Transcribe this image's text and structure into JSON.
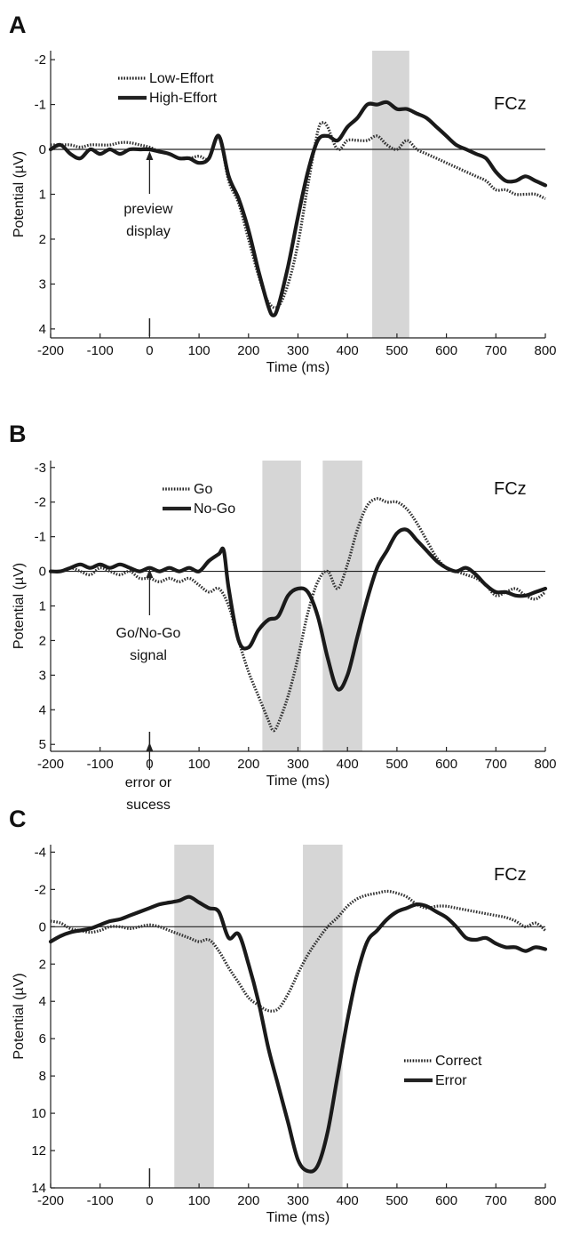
{
  "figure": {
    "panels": [
      {
        "letter": "A",
        "channel": "FCz",
        "annotation": {
          "lines": [
            "preview",
            "display"
          ]
        },
        "legend": [
          "Low-Effort",
          "High-Effort"
        ]
      },
      {
        "letter": "B",
        "channel": "FCz",
        "annotation": {
          "lines": [
            "Go/No-Go",
            "signal"
          ]
        },
        "legend": [
          "Go",
          "No-Go"
        ]
      },
      {
        "letter": "C",
        "channel": "FCz",
        "annotation": {
          "lines": [
            "error or",
            "sucess"
          ]
        },
        "legend": [
          "Correct",
          "Error"
        ]
      }
    ]
  },
  "chart_data": [
    {
      "type": "line",
      "panel": "A",
      "channel": "FCz",
      "xlabel": "Time (ms)",
      "ylabel": "Potential (µV)",
      "xlim": [
        -200,
        800
      ],
      "ylim": [
        4.2,
        -2.2
      ],
      "y_inverted": true,
      "xticks": [
        -200,
        -100,
        0,
        100,
        200,
        300,
        400,
        500,
        600,
        700,
        800
      ],
      "yticks": [
        -2,
        -1,
        0,
        1,
        2,
        3,
        4
      ],
      "ytick_labels": [
        "-2",
        "-1",
        "0",
        "1",
        "2",
        "3",
        "4"
      ],
      "shaded_windows": [
        [
          450,
          525
        ]
      ],
      "legend_position": "top-left",
      "grid": false,
      "series": [
        {
          "name": "Low-Effort",
          "style": "dotted",
          "x": [
            -200,
            -180,
            -160,
            -140,
            -120,
            -100,
            -80,
            -60,
            -40,
            -20,
            0,
            20,
            40,
            60,
            80,
            100,
            120,
            140,
            160,
            180,
            200,
            220,
            240,
            260,
            280,
            300,
            320,
            340,
            350,
            360,
            380,
            400,
            420,
            440,
            460,
            480,
            500,
            520,
            540,
            560,
            580,
            600,
            620,
            640,
            660,
            680,
            700,
            720,
            740,
            760,
            780,
            800
          ],
          "y": [
            -0.1,
            -0.1,
            -0.1,
            -0.05,
            -0.1,
            -0.1,
            -0.1,
            -0.15,
            -0.15,
            -0.1,
            -0.05,
            0.05,
            0.1,
            0.2,
            0.2,
            0.15,
            0.2,
            -0.3,
            0.7,
            1.2,
            2.0,
            2.8,
            3.4,
            3.5,
            3.0,
            2.1,
            0.8,
            -0.4,
            -0.6,
            -0.5,
            0.0,
            -0.2,
            -0.2,
            -0.2,
            -0.3,
            -0.1,
            0.0,
            -0.2,
            0.0,
            0.1,
            0.2,
            0.3,
            0.4,
            0.5,
            0.6,
            0.7,
            0.9,
            0.9,
            1.0,
            1.0,
            1.0,
            1.1
          ]
        },
        {
          "name": "High-Effort",
          "style": "solid",
          "x": [
            -200,
            -180,
            -160,
            -140,
            -120,
            -100,
            -80,
            -60,
            -40,
            -20,
            0,
            20,
            40,
            60,
            80,
            100,
            120,
            140,
            160,
            180,
            200,
            220,
            240,
            250,
            260,
            280,
            300,
            320,
            340,
            360,
            380,
            400,
            420,
            440,
            460,
            480,
            500,
            520,
            540,
            560,
            580,
            600,
            620,
            640,
            660,
            680,
            700,
            720,
            740,
            760,
            780,
            800
          ],
          "y": [
            0.0,
            -0.1,
            0.1,
            0.2,
            0.0,
            0.1,
            0.0,
            0.1,
            0.0,
            0.0,
            0.0,
            0.05,
            0.1,
            0.2,
            0.2,
            0.3,
            0.2,
            -0.3,
            0.6,
            1.1,
            1.8,
            2.7,
            3.5,
            3.7,
            3.5,
            2.6,
            1.5,
            0.5,
            -0.2,
            -0.3,
            -0.2,
            -0.5,
            -0.7,
            -1.0,
            -1.0,
            -1.05,
            -0.9,
            -0.9,
            -0.8,
            -0.7,
            -0.5,
            -0.3,
            -0.1,
            0.0,
            0.1,
            0.2,
            0.5,
            0.7,
            0.7,
            0.6,
            0.7,
            0.8
          ]
        }
      ]
    },
    {
      "type": "line",
      "panel": "B",
      "channel": "FCz",
      "xlabel": "Time (ms)",
      "ylabel": "Potential (µV)",
      "xlim": [
        -200,
        800
      ],
      "ylim": [
        5.2,
        -3.2
      ],
      "y_inverted": true,
      "xticks": [
        -200,
        -100,
        0,
        100,
        200,
        300,
        400,
        500,
        600,
        700,
        800
      ],
      "yticks": [
        -3,
        -2,
        -1,
        0,
        1,
        2,
        3,
        4,
        5
      ],
      "ytick_labels": [
        "-3",
        "-2",
        "-1",
        "0",
        "1",
        "2",
        "3",
        "4",
        "5"
      ],
      "shaded_windows": [
        [
          228,
          306
        ],
        [
          350,
          430
        ]
      ],
      "legend_position": "top-left",
      "grid": false,
      "series": [
        {
          "name": "Go",
          "style": "dotted",
          "x": [
            -200,
            -180,
            -160,
            -140,
            -120,
            -100,
            -80,
            -60,
            -40,
            -20,
            0,
            20,
            40,
            60,
            80,
            100,
            120,
            140,
            160,
            180,
            200,
            220,
            240,
            250,
            260,
            280,
            300,
            320,
            340,
            360,
            380,
            400,
            420,
            440,
            460,
            480,
            500,
            520,
            540,
            560,
            580,
            600,
            620,
            640,
            660,
            680,
            700,
            720,
            740,
            760,
            780,
            800
          ],
          "y": [
            0.0,
            0.0,
            -0.1,
            0.0,
            0.1,
            -0.1,
            0.0,
            0.1,
            0.0,
            0.2,
            0.2,
            0.3,
            0.2,
            0.3,
            0.2,
            0.4,
            0.6,
            0.5,
            1.0,
            2.0,
            2.9,
            3.6,
            4.3,
            4.6,
            4.4,
            3.6,
            2.5,
            1.2,
            0.3,
            0.0,
            0.5,
            -0.2,
            -1.2,
            -1.9,
            -2.1,
            -2.0,
            -2.0,
            -1.8,
            -1.4,
            -0.9,
            -0.4,
            -0.1,
            0.0,
            0.1,
            0.2,
            0.4,
            0.7,
            0.6,
            0.5,
            0.7,
            0.8,
            0.6
          ]
        },
        {
          "name": "No-Go",
          "style": "solid",
          "x": [
            -200,
            -180,
            -160,
            -140,
            -120,
            -100,
            -80,
            -60,
            -40,
            -20,
            0,
            20,
            40,
            60,
            80,
            100,
            120,
            140,
            150,
            160,
            180,
            200,
            220,
            240,
            260,
            280,
            300,
            320,
            340,
            360,
            380,
            400,
            420,
            440,
            460,
            480,
            500,
            520,
            540,
            560,
            580,
            600,
            620,
            640,
            660,
            680,
            700,
            720,
            740,
            760,
            780,
            800
          ],
          "y": [
            0.0,
            0.0,
            -0.1,
            -0.2,
            -0.1,
            -0.2,
            -0.1,
            -0.2,
            -0.1,
            0.0,
            -0.1,
            0.0,
            -0.1,
            0.0,
            -0.1,
            0.0,
            -0.3,
            -0.5,
            -0.6,
            0.5,
            2.0,
            2.2,
            1.7,
            1.4,
            1.3,
            0.7,
            0.5,
            0.6,
            1.3,
            2.5,
            3.4,
            3.0,
            1.9,
            0.8,
            -0.1,
            -0.6,
            -1.1,
            -1.2,
            -0.9,
            -0.6,
            -0.3,
            -0.1,
            0.0,
            -0.1,
            0.1,
            0.4,
            0.6,
            0.6,
            0.7,
            0.7,
            0.6,
            0.5
          ]
        }
      ]
    },
    {
      "type": "line",
      "panel": "C",
      "channel": "FCz",
      "xlabel": "Time (ms)",
      "ylabel": "Potential (µV)",
      "xlim": [
        -200,
        800
      ],
      "ylim": [
        14,
        -4.4
      ],
      "y_inverted": true,
      "xticks": [
        -200,
        -100,
        0,
        100,
        200,
        300,
        400,
        500,
        600,
        700,
        800
      ],
      "yticks": [
        -4,
        -2,
        0,
        2,
        4,
        6,
        8,
        10,
        12,
        14
      ],
      "ytick_labels": [
        "-4",
        "-2",
        "0",
        "2",
        "4",
        "6",
        "8",
        "10",
        "12",
        "14"
      ],
      "shaded_windows": [
        [
          50,
          130
        ],
        [
          310,
          390
        ]
      ],
      "legend_position": "bottom-right",
      "grid": false,
      "series": [
        {
          "name": "Correct",
          "style": "dotted",
          "x": [
            -200,
            -180,
            -160,
            -140,
            -120,
            -100,
            -80,
            -60,
            -40,
            -20,
            0,
            20,
            40,
            60,
            80,
            100,
            120,
            140,
            160,
            180,
            200,
            220,
            240,
            260,
            280,
            300,
            320,
            340,
            360,
            380,
            400,
            420,
            440,
            460,
            480,
            500,
            520,
            540,
            560,
            580,
            600,
            620,
            640,
            660,
            680,
            700,
            720,
            740,
            760,
            780,
            800
          ],
          "y": [
            -0.3,
            -0.2,
            0.1,
            0.2,
            0.3,
            0.2,
            0.0,
            0.0,
            0.1,
            0.0,
            -0.1,
            0.0,
            0.2,
            0.4,
            0.6,
            0.8,
            0.7,
            1.3,
            2.2,
            3.0,
            3.8,
            4.2,
            4.5,
            4.4,
            3.6,
            2.5,
            1.5,
            0.7,
            0.0,
            -0.5,
            -1.1,
            -1.5,
            -1.7,
            -1.8,
            -1.9,
            -1.8,
            -1.6,
            -1.2,
            -1.0,
            -1.1,
            -1.1,
            -1.0,
            -0.9,
            -0.8,
            -0.7,
            -0.6,
            -0.5,
            -0.3,
            0.0,
            -0.2,
            0.2
          ]
        },
        {
          "name": "Error",
          "style": "solid",
          "x": [
            -200,
            -180,
            -160,
            -140,
            -120,
            -100,
            -80,
            -60,
            -40,
            -20,
            0,
            20,
            40,
            60,
            80,
            100,
            120,
            140,
            160,
            180,
            200,
            220,
            240,
            260,
            280,
            300,
            320,
            340,
            360,
            380,
            400,
            420,
            440,
            460,
            480,
            500,
            520,
            540,
            560,
            580,
            600,
            620,
            640,
            660,
            680,
            700,
            720,
            740,
            760,
            780,
            800
          ],
          "y": [
            0.8,
            0.5,
            0.3,
            0.2,
            0.1,
            -0.1,
            -0.3,
            -0.4,
            -0.6,
            -0.8,
            -1.0,
            -1.2,
            -1.3,
            -1.4,
            -1.6,
            -1.3,
            -1.0,
            -0.8,
            0.6,
            0.4,
            2.0,
            4.0,
            6.5,
            8.5,
            10.5,
            12.5,
            13.1,
            12.8,
            11.0,
            8.0,
            5.0,
            2.5,
            0.8,
            0.2,
            -0.4,
            -0.8,
            -1.0,
            -1.2,
            -1.1,
            -0.8,
            -0.5,
            0.0,
            0.6,
            0.7,
            0.6,
            0.9,
            1.1,
            1.1,
            1.3,
            1.1,
            1.2
          ]
        }
      ]
    }
  ]
}
